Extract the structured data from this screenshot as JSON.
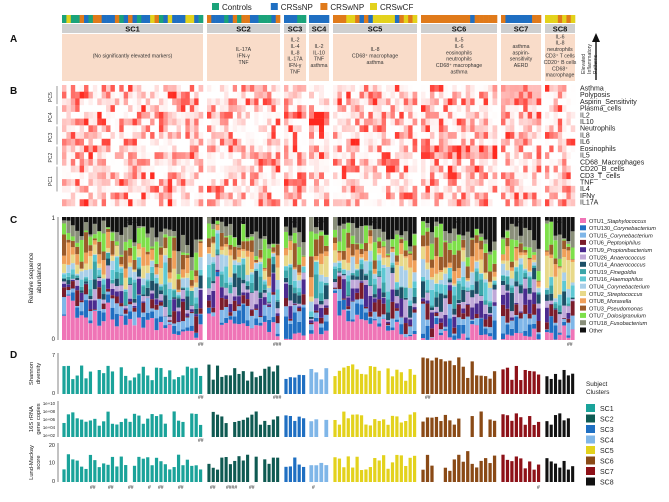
{
  "legend": {
    "items": [
      {
        "label": "Controls",
        "color": "#1aa37a"
      },
      {
        "label": "CRSsNP",
        "color": "#1f6fc2"
      },
      {
        "label": "CRSwNP",
        "color": "#e07a1a"
      },
      {
        "label": "CRSwCF",
        "color": "#e3d21c"
      }
    ]
  },
  "panels": {
    "a": "A",
    "b": "B",
    "c": "C",
    "d": "D"
  },
  "clusters": [
    {
      "id": "SC1",
      "note": "(No significantly elevated markers)"
    },
    {
      "id": "SC2",
      "note": "IL-17A\nIFN-γ\nTNF"
    },
    {
      "id": "SC3",
      "note": "IL-2\nIL-4\nIL-8\nIL-17A\nIFN-γ\nTNF"
    },
    {
      "id": "SC4",
      "note": "IL-2\nIL-10\nTNF\nasthma"
    },
    {
      "id": "SC5",
      "note": "IL-8\nCD68⁺ macrophage\nasthma"
    },
    {
      "id": "SC6",
      "note": "IL-5\nIL-6\neosinophils\nneutrophils\nCD68⁺ macrophage\nasthma"
    },
    {
      "id": "SC7",
      "note": "asthma\naspirin-\nsensitivity\nAERD"
    },
    {
      "id": "SC8",
      "note": "IL-6\nIL-8\nneutrophils\nCD3⁺ T cells\nCD20⁺ B cells\nCD68⁺\nmacrophage"
    }
  ],
  "elevated_label": "Elevated\nInflammatory\nPatterns",
  "heatmap": {
    "rows": [
      "Asthma",
      "Polyposis",
      "Aspirin_Sensitivity",
      "Plasma_cells",
      "IL2",
      "IL10",
      "Neutrophils",
      "IL8",
      "IL6",
      "Eosinophils",
      "IL5",
      "CD68_Macrophages",
      "CD20_B_cells",
      "CD3_T_cells",
      "TNF",
      "IL4",
      "IFNγ",
      "IL17A"
    ],
    "pcs": [
      "PC5",
      "PC4",
      "PC3",
      "PC2",
      "PC1"
    ]
  },
  "taxa": {
    "ylabel": "Relative sequence\nabundance",
    "ytick_top": "1",
    "ytick_bottom": "0",
    "items": [
      {
        "label": "OTU1_Staphylococcus",
        "color": "#ef74b6"
      },
      {
        "label": "OTU130_Corynebacterium",
        "color": "#1f6fc2"
      },
      {
        "label": "OTU15_Corynebacterium",
        "color": "#7fb6e8"
      },
      {
        "label": "OTU6_Peptoniphilus",
        "color": "#7a1c2a"
      },
      {
        "label": "OTU9_Propionibacterium",
        "color": "#4b2b8f"
      },
      {
        "label": "OTU26_Anaerococcus",
        "color": "#c0a8d8"
      },
      {
        "label": "OTU14_Anaerococcus",
        "color": "#1d4f66"
      },
      {
        "label": "OTU19_Finegoldia",
        "color": "#3aa5a8"
      },
      {
        "label": "OTU16_Haemophilus",
        "color": "#5ec8d4"
      },
      {
        "label": "OTU4_Corynebacterium",
        "color": "#a9cfe9"
      },
      {
        "label": "OTU2_Streptococcus",
        "color": "#e8d98a"
      },
      {
        "label": "OTU8_Moraxella",
        "color": "#f0a05a"
      },
      {
        "label": "OTU3_Pseudomonas",
        "color": "#9b5a2a"
      },
      {
        "label": "OTU7_Dolosigranulum",
        "color": "#7ee04a"
      },
      {
        "label": "OTU18_Fusobacterium",
        "color": "#8a8f7a"
      },
      {
        "label": "Other",
        "color": "#111111"
      }
    ]
  },
  "metrics": [
    {
      "label": "Shannon\ndiversity",
      "tick_top": "7",
      "tick_bottom": "0"
    },
    {
      "label": "16S rRNA\ngene copies",
      "ticks": [
        "1e+10",
        "1e+08",
        "1e+06",
        "1e+04",
        "1e+02"
      ]
    },
    {
      "label": "Lund-Mackay\nscore",
      "tick_top": "20",
      "tick_mid": "10",
      "tick_bottom": "0"
    }
  ],
  "subject_clusters": {
    "title": "Subject\nClusters",
    "items": [
      {
        "label": "SC1",
        "color": "#1aa39a"
      },
      {
        "label": "SC2",
        "color": "#0f5a52"
      },
      {
        "label": "SC3",
        "color": "#1f6fc2"
      },
      {
        "label": "SC4",
        "color": "#7fb6e8"
      },
      {
        "label": "SC5",
        "color": "#e3d21c"
      },
      {
        "label": "SC6",
        "color": "#8a4a16"
      },
      {
        "label": "SC7",
        "color": "#8e1118"
      },
      {
        "label": "SC8",
        "color": "#111111"
      }
    ]
  },
  "marks": {
    "hash2": "##",
    "hash3": "###",
    "hash1": "#",
    "hash4": "####"
  }
}
